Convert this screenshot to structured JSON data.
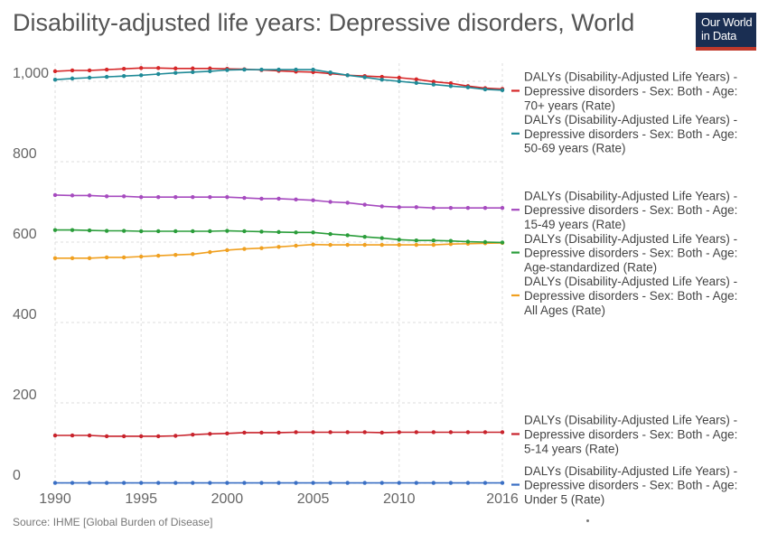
{
  "header": {
    "title": "Disability-adjusted life years: Depressive disorders, World"
  },
  "logo": {
    "line1": "Our World",
    "line2": "in Data",
    "colors": {
      "background": "#1a2e52",
      "accent": "#c0392b"
    }
  },
  "footer": {
    "source": "Source: IHME [Global Burden of Disease]"
  },
  "chart_data": {
    "type": "line",
    "title": "Disability-adjusted life years: Depressive disorders, World",
    "xlabel": "",
    "ylabel": "",
    "xlim": [
      1990,
      2016
    ],
    "ylim": [
      0,
      1000
    ],
    "yticks": [
      0,
      200,
      400,
      600,
      800,
      1000
    ],
    "ytick_labels": [
      "0",
      "200",
      "400",
      "600",
      "800",
      "1,000"
    ],
    "xticks": [
      1990,
      1995,
      2000,
      2005,
      2010,
      2016
    ],
    "grid": true,
    "legend_position": "right",
    "x": [
      1990,
      1991,
      1992,
      1993,
      1994,
      1995,
      1996,
      1997,
      1998,
      1999,
      2000,
      2001,
      2002,
      2003,
      2004,
      2005,
      2006,
      2007,
      2008,
      2009,
      2010,
      2011,
      2012,
      2013,
      2014,
      2015,
      2016
    ],
    "series": [
      {
        "name": "DALYs (Disability-Adjusted Life Years) - Depressive disorders - Sex: Both - Age: 70+ years (Rate)",
        "label_lines": [
          "DALYs (Disability-Adjusted Life Years) -",
          "Depressive disorders - Sex: Both - Age:",
          "70+ years (Rate)"
        ],
        "color": "#d62728",
        "values": [
          1025,
          1027,
          1027,
          1029,
          1031,
          1033,
          1033,
          1032,
          1032,
          1032,
          1031,
          1030,
          1028,
          1026,
          1024,
          1023,
          1019,
          1015,
          1013,
          1011,
          1009,
          1005,
          999,
          995,
          988,
          983,
          981
        ]
      },
      {
        "name": "DALYs (Disability-Adjusted Life Years) - Depressive disorders - Sex: Both - Age: 50-69 years (Rate)",
        "label_lines": [
          "DALYs (Disability-Adjusted Life Years) -",
          "Depressive disorders - Sex: Both - Age:",
          "50-69 years (Rate)"
        ],
        "color": "#1f8a97",
        "values": [
          1004,
          1007,
          1009,
          1011,
          1013,
          1015,
          1018,
          1021,
          1023,
          1025,
          1028,
          1029,
          1029,
          1029,
          1029,
          1029,
          1022,
          1015,
          1010,
          1004,
          1000,
          996,
          992,
          988,
          985,
          980,
          978
        ]
      },
      {
        "name": "DALYs (Disability-Adjusted Life Years) - Depressive disorders - Sex: Both - Age: 15-49 years (Rate)",
        "label_lines": [
          "DALYs (Disability-Adjusted Life Years) -",
          "Depressive disorders - Sex: Both - Age:",
          "15-49 years (Rate)"
        ],
        "color": "#a64bbf",
        "values": [
          717,
          716,
          716,
          714,
          714,
          712,
          712,
          712,
          712,
          712,
          712,
          710,
          708,
          708,
          706,
          704,
          700,
          698,
          693,
          689,
          687,
          687,
          685,
          685,
          685,
          685,
          685
        ]
      },
      {
        "name": "DALYs (Disability-Adjusted Life Years) - Depressive disorders - Sex: Both - Age: All Ages (Rate)",
        "label_lines": [
          "DALYs (Disability-Adjusted Life Years) -",
          "Depressive disorders - Sex: Both - Age:",
          "All Ages (Rate)"
        ],
        "color": "#f0a020",
        "values": [
          560,
          560,
          560,
          562,
          562,
          564,
          566,
          568,
          570,
          575,
          580,
          583,
          585,
          588,
          591,
          594,
          593,
          593,
          593,
          593,
          593,
          593,
          593,
          595,
          596,
          597,
          598
        ]
      },
      {
        "name": "DALYs (Disability-Adjusted Life Years) - Depressive disorders - Sex: Both - Age: Age-standardized (Rate)",
        "label_lines": [
          "DALYs (Disability-Adjusted Life Years) -",
          "Depressive disorders - Sex: Both - Age:",
          "Age-standardized (Rate)"
        ],
        "color": "#2a9d3a",
        "values": [
          630,
          630,
          629,
          628,
          628,
          627,
          627,
          627,
          627,
          627,
          628,
          627,
          626,
          625,
          624,
          624,
          620,
          617,
          613,
          610,
          606,
          604,
          604,
          603,
          601,
          600,
          599
        ]
      },
      {
        "name": "DALYs (Disability-Adjusted Life Years) - Depressive disorders - Sex: Both - Age: 5-14 years (Rate)",
        "label_lines": [
          "DALYs (Disability-Adjusted Life Years) -",
          "Depressive disorders - Sex: Both - Age:",
          "5-14 years (Rate)"
        ],
        "color": "#c8232c",
        "values": [
          119,
          119,
          119,
          117,
          117,
          117,
          117,
          118,
          121,
          123,
          124,
          126,
          126,
          126,
          127,
          127,
          127,
          127,
          127,
          126,
          127,
          127,
          127,
          127,
          127,
          127,
          127
        ]
      },
      {
        "name": "DALYs (Disability-Adjusted Life Years) - Depressive disorders - Sex: Both - Age: Under 5 (Rate)",
        "label_lines": [
          "DALYs (Disability-Adjusted Life Years) -",
          "Depressive disorders - Sex: Both - Age:",
          "Under 5 (Rate)"
        ],
        "color": "#3a6fc4",
        "values": [
          1,
          1,
          1,
          1,
          1,
          1,
          1,
          1,
          1,
          1,
          1,
          1,
          1,
          1,
          1,
          1,
          1,
          1,
          1,
          1,
          1,
          1,
          1,
          1,
          1,
          1,
          1
        ]
      }
    ]
  }
}
